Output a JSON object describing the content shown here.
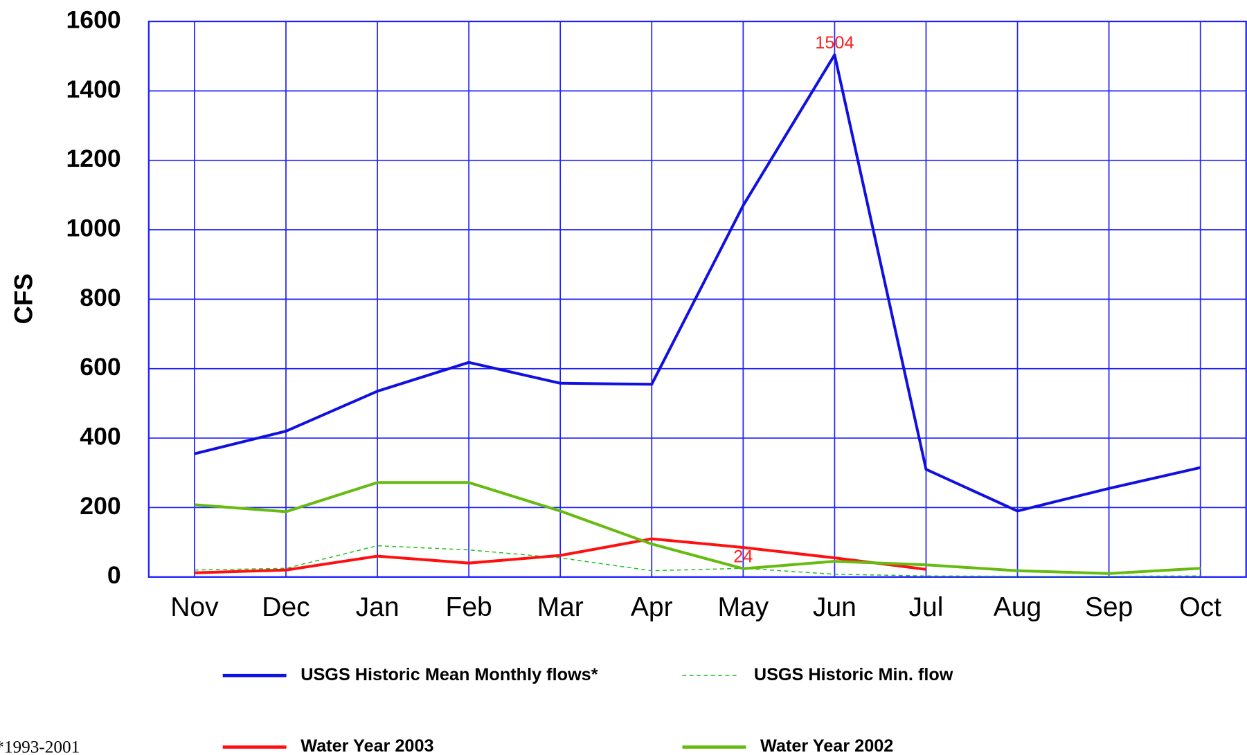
{
  "chart_data": {
    "type": "line",
    "y_label": "CFS",
    "footnote": "*1993-2001",
    "categories": [
      "Nov",
      "Dec",
      "Jan",
      "Feb",
      "Mar",
      "Apr",
      "May",
      "Jun",
      "Jul",
      "Aug",
      "Sep",
      "Oct"
    ],
    "ylim": [
      0,
      1600
    ],
    "yticks": [
      0,
      200,
      400,
      600,
      800,
      1000,
      1200,
      1400,
      1600
    ],
    "grid": true,
    "grid_color": "#2020ff",
    "series": [
      {
        "name": "USGS Historic Mean Monthly flows*",
        "color": "#1010e0",
        "style": "solid",
        "values": [
          355,
          420,
          535,
          618,
          558,
          555,
          1070,
          1504,
          310,
          190,
          255,
          315
        ],
        "value_labels": [
          null,
          null,
          null,
          null,
          null,
          null,
          null,
          "1504",
          null,
          null,
          null,
          null
        ]
      },
      {
        "name": "USGS Historic Min. flow",
        "color": "#20c020",
        "style": "dashed",
        "values": [
          20,
          25,
          90,
          78,
          55,
          18,
          25,
          8,
          3,
          2,
          2,
          3
        ]
      },
      {
        "name": "Water Year 2003",
        "color": "#ff1010",
        "style": "solid",
        "values": [
          12,
          20,
          60,
          40,
          62,
          110,
          85,
          55,
          22,
          null,
          null,
          null
        ]
      },
      {
        "name": "Water Year 2002",
        "color": "#66bb11",
        "style": "solid",
        "values": [
          208,
          188,
          272,
          272,
          190,
          95,
          24,
          45,
          35,
          18,
          10,
          25
        ],
        "value_labels": [
          null,
          null,
          null,
          null,
          null,
          null,
          "24",
          null,
          null,
          null,
          null,
          null
        ]
      }
    ]
  }
}
